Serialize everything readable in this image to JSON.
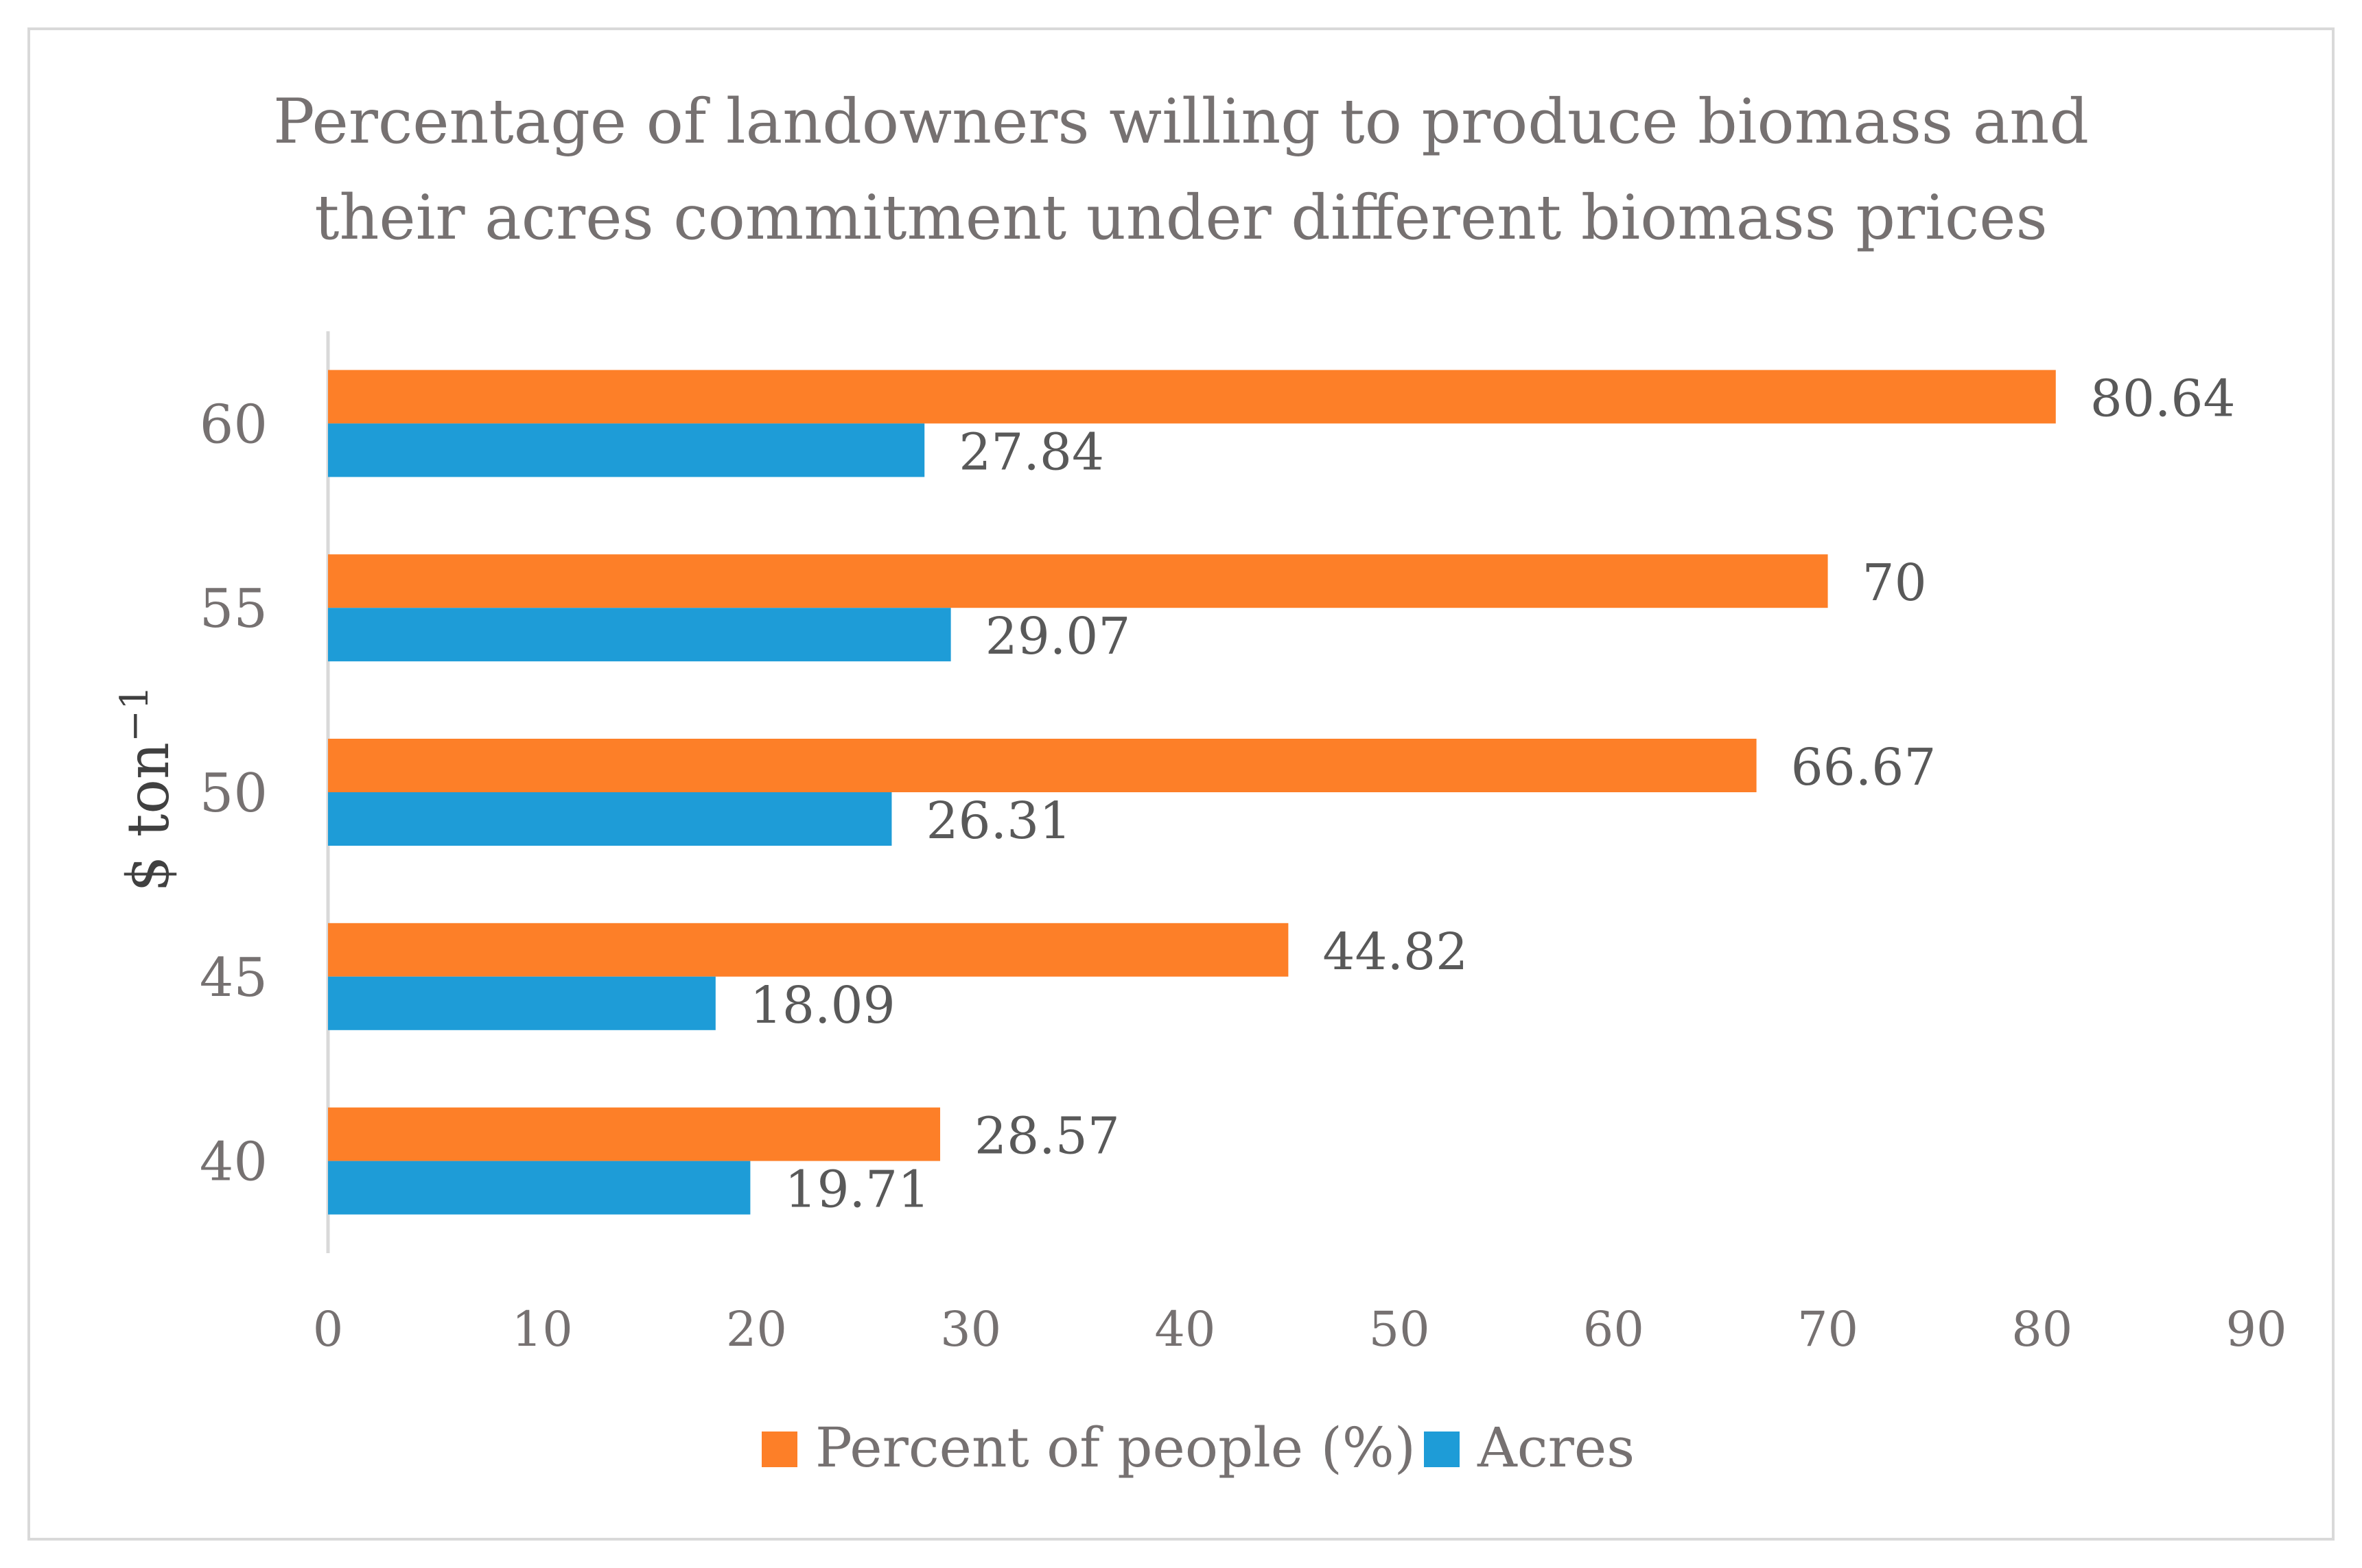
{
  "chart_data": {
    "type": "bar",
    "orientation": "horizontal",
    "title_lines": [
      "Percentage of landowners willing to produce biomass and",
      "their acres commitment under different biomass prices"
    ],
    "ylabel": "$ ton",
    "ylabel_superscript": "−1",
    "xlabel": "",
    "xlim": [
      0,
      90
    ],
    "xticks": [
      "0",
      "10",
      "20",
      "30",
      "40",
      "50",
      "60",
      "70",
      "80",
      "90"
    ],
    "categories": [
      "40",
      "45",
      "50",
      "55",
      "60"
    ],
    "series": [
      {
        "name": "Percent of people (%)",
        "color": "#fd7f28",
        "values": [
          28.57,
          44.82,
          66.67,
          70,
          80.64
        ],
        "labels": [
          "28.57",
          "44.82",
          "66.67",
          "70",
          "80.64"
        ]
      },
      {
        "name": "Acres",
        "color": "#1e9cd7",
        "values": [
          19.71,
          18.09,
          26.31,
          29.07,
          27.84
        ],
        "labels": [
          "19.71",
          "18.09",
          "26.31",
          "29.07",
          "27.84"
        ]
      }
    ],
    "grid": false,
    "legend_position": "bottom",
    "text_color": "#767171",
    "label_color": "#595959"
  }
}
